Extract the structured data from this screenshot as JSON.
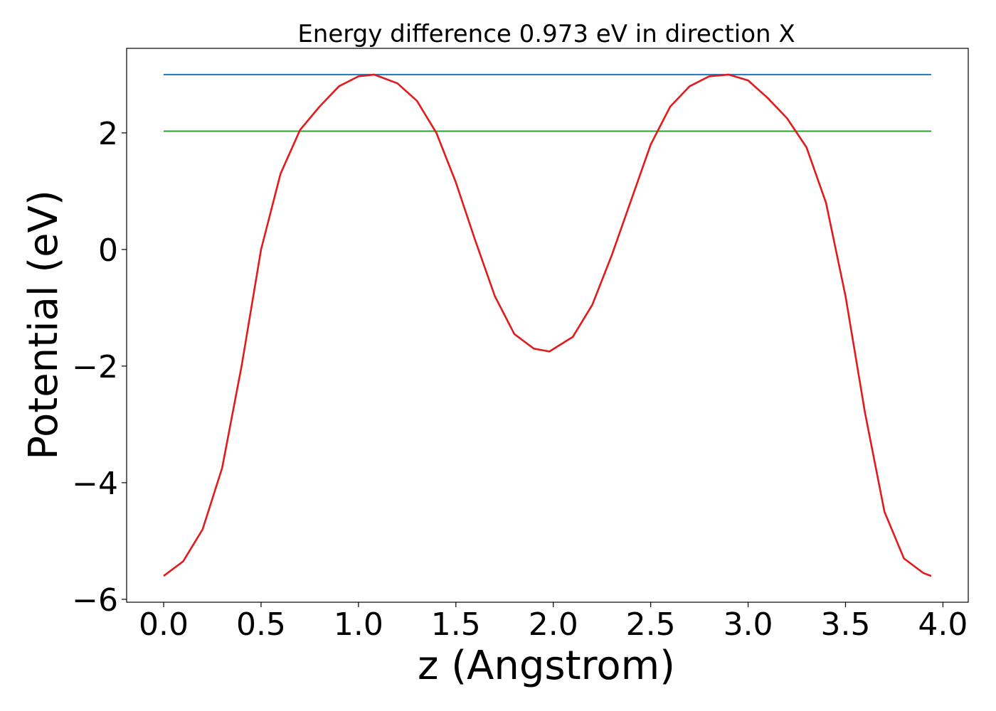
{
  "chart_data": {
    "type": "line",
    "title": "Energy difference 0.973 eV in direction X",
    "xlabel": "z (Angstrom)",
    "ylabel": "Potential (eV)",
    "xlim": [
      -0.19,
      4.13
    ],
    "ylim": [
      -6.05,
      3.45
    ],
    "xticks": [
      0.0,
      0.5,
      1.0,
      1.5,
      2.0,
      2.5,
      3.0,
      3.5,
      4.0
    ],
    "xtick_labels": [
      "0.0",
      "0.5",
      "1.0",
      "1.5",
      "2.0",
      "2.5",
      "3.0",
      "3.5",
      "4.0"
    ],
    "yticks": [
      -6,
      -4,
      -2,
      0,
      2
    ],
    "ytick_labels": [
      "−6",
      "−4",
      "−2",
      "0",
      "2"
    ],
    "grid": false,
    "series": [
      {
        "color": "#1f77b4",
        "x": [
          0.0,
          3.94
        ],
        "y": [
          3.0,
          3.0
        ]
      },
      {
        "color": "#2ca02c",
        "x": [
          0.0,
          3.94
        ],
        "y": [
          2.03,
          2.03
        ]
      },
      {
        "color": "#e31a1c",
        "x": [
          0.0,
          0.1,
          0.2,
          0.3,
          0.4,
          0.5,
          0.6,
          0.7,
          0.8,
          0.9,
          1.0,
          1.08,
          1.2,
          1.3,
          1.4,
          1.5,
          1.6,
          1.7,
          1.8,
          1.9,
          1.98,
          2.1,
          2.2,
          2.3,
          2.4,
          2.5,
          2.6,
          2.7,
          2.8,
          2.9,
          3.0,
          3.1,
          3.2,
          3.3,
          3.4,
          3.5,
          3.6,
          3.7,
          3.8,
          3.9,
          3.94
        ],
        "y": [
          -5.6,
          -5.35,
          -4.8,
          -3.75,
          -2.0,
          0.0,
          1.3,
          2.05,
          2.45,
          2.8,
          2.97,
          3.0,
          2.85,
          2.55,
          2.0,
          1.15,
          0.15,
          -0.8,
          -1.45,
          -1.7,
          -1.75,
          -1.5,
          -0.95,
          -0.1,
          0.85,
          1.8,
          2.45,
          2.8,
          2.97,
          3.0,
          2.9,
          2.6,
          2.25,
          1.75,
          0.8,
          -0.8,
          -2.8,
          -4.5,
          -5.3,
          -5.55,
          -5.6
        ]
      }
    ]
  }
}
